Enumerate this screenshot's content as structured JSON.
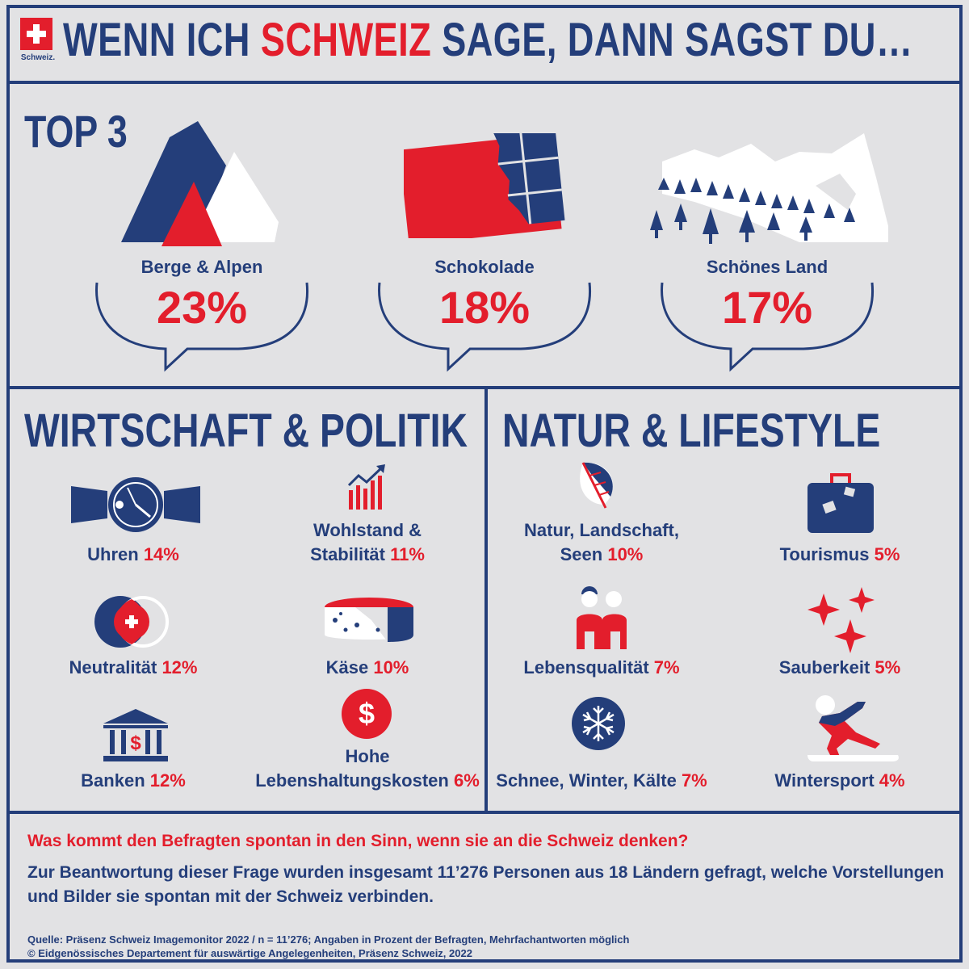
{
  "header": {
    "title_part1": "WENN ICH ",
    "title_highlight": "SCHWEIZ",
    "title_part2": " SAGE, DANN SAGST DU…",
    "logo_text": "Schweiz."
  },
  "top3": {
    "heading": "TOP 3",
    "items": [
      {
        "label": "Berge & Alpen",
        "value": "23%"
      },
      {
        "label": "Schokolade",
        "value": "18%"
      },
      {
        "label": "Schönes Land",
        "value": "17%"
      }
    ]
  },
  "wirtschaft": {
    "heading": "WIRTSCHAFT & POLITIK",
    "items": [
      {
        "label": "Uhren",
        "value": "14%"
      },
      {
        "label_line1": "Wohlstand &",
        "label": "Stabilität",
        "value": "11%"
      },
      {
        "label": "Neutralität",
        "value": "12%"
      },
      {
        "label": "Käse",
        "value": "10%"
      },
      {
        "label": "Banken",
        "value": "12%"
      },
      {
        "label_line1": "Hohe",
        "label": "Lebenshaltungskosten",
        "value": "6%"
      }
    ]
  },
  "natur": {
    "heading": "NATUR & LIFESTYLE",
    "items": [
      {
        "label_line1": "Natur, Landschaft,",
        "label": "Seen",
        "value": "10%"
      },
      {
        "label": "Tourismus",
        "value": "5%"
      },
      {
        "label": "Lebensqualität",
        "value": "7%"
      },
      {
        "label": "Sauberkeit",
        "value": "5%"
      },
      {
        "label": "Schnee, Winter, Kälte",
        "value": "7%"
      },
      {
        "label": "Wintersport",
        "value": "4%"
      }
    ]
  },
  "footer": {
    "question": "Was kommt den Befragten spontan in den Sinn, wenn sie an die Schweiz denken?",
    "description": "Zur Beantwortung dieser Frage wurden insgesamt 11’276 Personen aus 18 Ländern gefragt, welche Vorstellungen und Bilder sie spontan mit der Schweiz verbinden.",
    "source": "Quelle: Präsenz Schweiz Imagemonitor 2022 / n = 11’276; Angaben in Prozent der Befragten, Mehrfachantworten möglich",
    "copyright": "© Eidgenössisches Departement für auswärtige Angelegenheiten, Präsenz Schweiz, 2022"
  },
  "colors": {
    "navy": "#243e7a",
    "red": "#e31e2c",
    "background": "#e2e2e4"
  }
}
